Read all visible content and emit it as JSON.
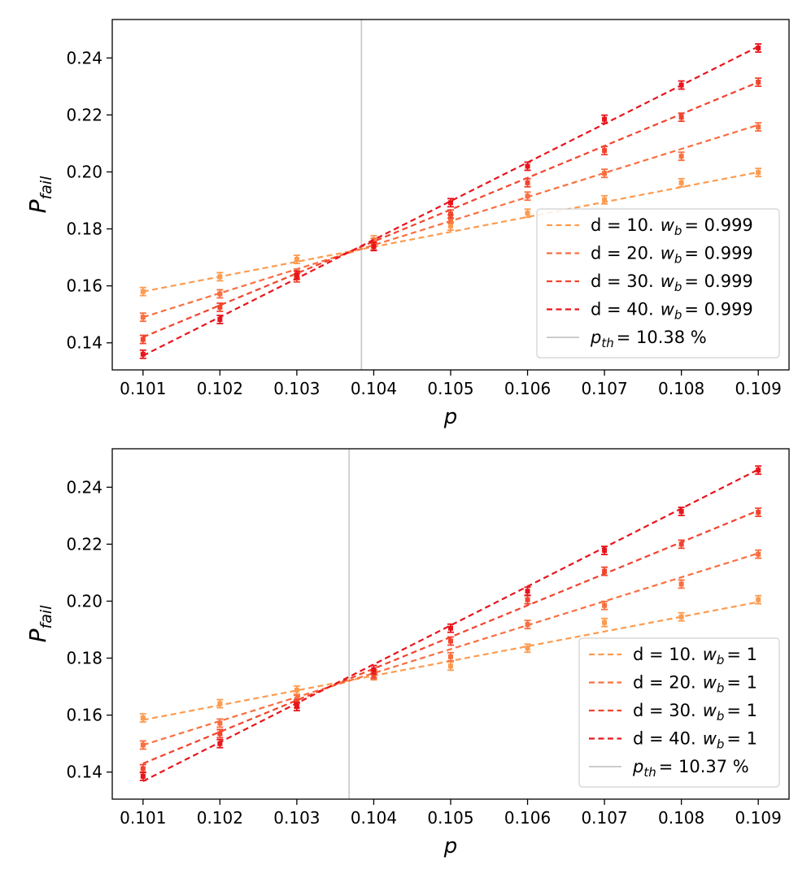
{
  "chart_data": [
    {
      "type": "line",
      "xlabel": "p",
      "ylabel": "P",
      "ylabel_sub": "fail",
      "xlim": [
        0.1006,
        0.1094
      ],
      "ylim": [
        0.1305,
        0.2535
      ],
      "xticks": [
        "0.101",
        "0.102",
        "0.103",
        "0.104",
        "0.105",
        "0.106",
        "0.107",
        "0.108",
        "0.109"
      ],
      "xtick_values": [
        0.101,
        0.102,
        0.103,
        0.104,
        0.105,
        0.106,
        0.107,
        0.108,
        0.109
      ],
      "yticks": [
        "0.14",
        "0.16",
        "0.18",
        "0.20",
        "0.22",
        "0.24"
      ],
      "ytick_values": [
        0.14,
        0.16,
        0.18,
        0.2,
        0.22,
        0.24
      ],
      "threshold": 0.10384,
      "legend_location": "lower right",
      "x": [
        0.101,
        0.102,
        0.103,
        0.104,
        0.105,
        0.106,
        0.107,
        0.108,
        0.109
      ],
      "series": [
        {
          "name": "d = 10.",
          "w_label": "w",
          "w_sub": "b",
          "w_value": "= 0.999",
          "color": "#fc9b4f",
          "values": [
            0.158,
            0.1632,
            0.1693,
            0.1762,
            0.181,
            0.1855,
            0.1902,
            0.1962,
            0.1998
          ],
          "fit": [
            0.158,
            0.1999
          ]
        },
        {
          "name": "d = 20.",
          "w_label": "w",
          "w_sub": "b",
          "w_value": "= 0.999",
          "color": "#f96f3f",
          "values": [
            0.149,
            0.1572,
            0.1645,
            0.1752,
            0.1835,
            0.1915,
            0.1995,
            0.2055,
            0.2158
          ],
          "fit": [
            0.149,
            0.2165
          ]
        },
        {
          "name": "d = 30.",
          "w_label": "w",
          "w_sub": "b",
          "w_value": "= 0.999",
          "color": "#f2442d",
          "values": [
            0.1412,
            0.1525,
            0.1628,
            0.174,
            0.1852,
            0.1962,
            0.2075,
            0.2192,
            0.2315
          ],
          "fit": [
            0.142,
            0.2315
          ]
        },
        {
          "name": "d = 40.",
          "w_label": "w",
          "w_sub": "b",
          "w_value": "= 0.999",
          "color": "#e8141c",
          "values": [
            0.136,
            0.1482,
            0.1638,
            0.1738,
            0.1892,
            0.202,
            0.2185,
            0.2305,
            0.2435
          ],
          "fit": [
            0.1355,
            0.244
          ]
        }
      ],
      "threshold_legend": {
        "label": "p",
        "sub": "th",
        "value": "= 10.38 %",
        "color": "#cccccc"
      }
    },
    {
      "type": "line",
      "xlabel": "p",
      "ylabel": "P",
      "ylabel_sub": "fail",
      "xlim": [
        0.1006,
        0.1094
      ],
      "ylim": [
        0.1305,
        0.2535
      ],
      "xticks": [
        "0.101",
        "0.102",
        "0.103",
        "0.104",
        "0.105",
        "0.106",
        "0.107",
        "0.108",
        "0.109"
      ],
      "xtick_values": [
        0.101,
        0.102,
        0.103,
        0.104,
        0.105,
        0.106,
        0.107,
        0.108,
        0.109
      ],
      "yticks": [
        "0.14",
        "0.16",
        "0.18",
        "0.20",
        "0.22",
        "0.24"
      ],
      "ytick_values": [
        0.14,
        0.16,
        0.18,
        0.2,
        0.22,
        0.24
      ],
      "threshold": 0.10368,
      "legend_location": "lower right",
      "x": [
        0.101,
        0.102,
        0.103,
        0.104,
        0.105,
        0.106,
        0.107,
        0.108,
        0.109
      ],
      "series": [
        {
          "name": "d = 10.",
          "w_label": "w",
          "w_sub": "b",
          "w_value": "= 1",
          "color": "#fc9b4f",
          "values": [
            0.159,
            0.164,
            0.1688,
            0.1738,
            0.1772,
            0.1835,
            0.1925,
            0.1945,
            0.2005
          ],
          "fit": [
            0.1583,
            0.1997
          ]
        },
        {
          "name": "d = 20.",
          "w_label": "w",
          "w_sub": "b",
          "w_value": "= 1",
          "color": "#f96f3f",
          "values": [
            0.1495,
            0.1572,
            0.1655,
            0.174,
            0.1805,
            0.1918,
            0.1985,
            0.206,
            0.2165
          ],
          "fit": [
            0.1495,
            0.2168
          ]
        },
        {
          "name": "d = 30.",
          "w_label": "w",
          "w_sub": "b",
          "w_value": "= 1",
          "color": "#f2442d",
          "values": [
            0.1412,
            0.1535,
            0.164,
            0.1745,
            0.186,
            0.2005,
            0.2105,
            0.22,
            0.2312
          ],
          "fit": [
            0.143,
            0.2318
          ]
        },
        {
          "name": "d = 40.",
          "w_label": "w",
          "w_sub": "b",
          "w_value": "= 1",
          "color": "#e8141c",
          "values": [
            0.1385,
            0.15,
            0.163,
            0.176,
            0.1905,
            0.2035,
            0.2178,
            0.2315,
            0.246
          ],
          "fit": [
            0.1368,
            0.2462
          ]
        }
      ],
      "threshold_legend": {
        "label": "p",
        "sub": "th",
        "value": "= 10.37 %",
        "color": "#cccccc"
      }
    }
  ]
}
